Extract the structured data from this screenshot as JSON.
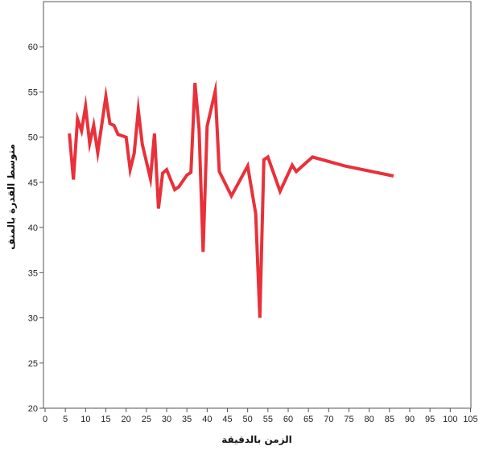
{
  "chart_data": {
    "type": "line",
    "xlabel": "الزمن بالدقيقة",
    "ylabel": "متوسط القدرة بالمنف",
    "xlim": [
      0,
      105
    ],
    "ylim": [
      20,
      65
    ],
    "x_ticks": [
      0,
      5,
      10,
      15,
      20,
      25,
      30,
      35,
      40,
      45,
      50,
      55,
      60,
      65,
      70,
      75,
      80,
      85,
      90,
      95,
      100,
      105
    ],
    "y_ticks": [
      20,
      25,
      30,
      35,
      40,
      45,
      50,
      55,
      60
    ],
    "grid": false,
    "legend": "none",
    "series": [
      {
        "color": "#e8313a",
        "x": [
          6,
          7,
          8,
          9,
          10,
          11,
          12,
          13,
          15,
          16,
          17,
          18,
          20,
          21,
          22,
          23,
          24,
          26,
          27,
          28,
          29,
          30,
          32,
          33,
          35,
          36,
          37,
          38,
          39,
          40,
          42,
          43,
          46,
          50,
          52,
          53,
          54,
          55,
          58,
          61,
          62,
          66,
          74,
          86
        ],
        "y": [
          50.4,
          45.3,
          52.0,
          50.7,
          53.4,
          49.3,
          51.3,
          48.3,
          54.5,
          51.5,
          51.3,
          50.3,
          50.0,
          46.4,
          48.2,
          53.0,
          49.2,
          45.4,
          50.4,
          42.1,
          46.0,
          46.4,
          44.2,
          44.5,
          45.8,
          46.1,
          56.0,
          50.9,
          37.3,
          51.2,
          55.1,
          46.2,
          43.5,
          46.8,
          41.5,
          30.0,
          47.5,
          47.8,
          44.0,
          46.9,
          46.2,
          47.8,
          46.8,
          45.7
        ]
      }
    ]
  }
}
